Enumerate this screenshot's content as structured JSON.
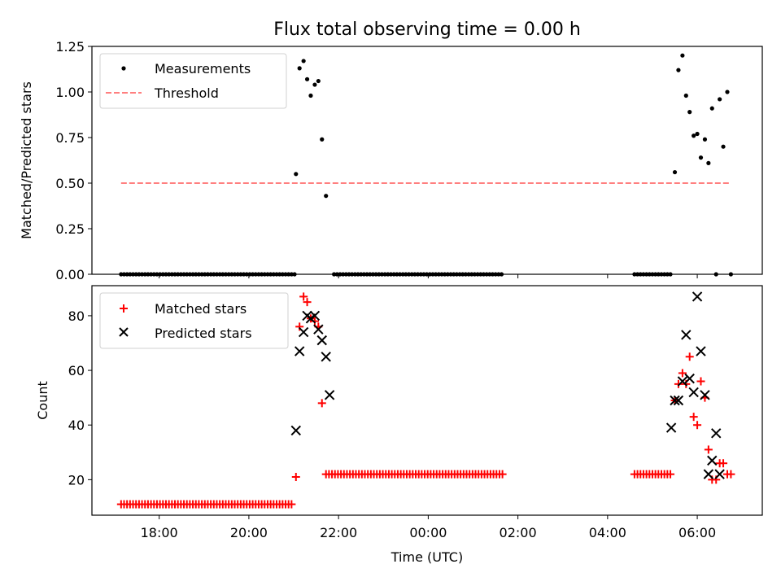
{
  "chart_data": [
    {
      "type": "scatter",
      "title": "Flux total observing time = 0.00 h",
      "xlabel": "",
      "ylabel": "Matched/Predicted stars",
      "x_unit": "hours since 00:00 UTC (day 1)",
      "xlim": [
        16.5,
        31.45
      ],
      "ylim": [
        0.0,
        1.25
      ],
      "yticks": [
        "0.00",
        "0.25",
        "0.50",
        "0.75",
        "1.00",
        "1.25"
      ],
      "xticks": [
        18,
        20,
        22,
        24,
        26,
        28,
        30
      ],
      "legend": {
        "location": "top-left",
        "entries": [
          "Measurements",
          "Threshold"
        ]
      },
      "series": [
        {
          "name": "Measurements",
          "marker": "point",
          "color": "#000000",
          "zero_ranges": [
            [
              17.15,
              21.05,
              0.0667
            ],
            [
              21.9,
              25.7,
              0.0667
            ],
            [
              28.6,
              29.45,
              0.0667
            ]
          ],
          "points": [
            [
              21.05,
              0.55
            ],
            [
              21.13,
              1.13
            ],
            [
              21.22,
              1.17
            ],
            [
              21.3,
              1.07
            ],
            [
              21.38,
              0.98
            ],
            [
              21.47,
              1.04
            ],
            [
              21.55,
              1.06
            ],
            [
              21.63,
              0.74
            ],
            [
              21.72,
              0.43
            ],
            [
              29.5,
              0.56
            ],
            [
              29.58,
              1.12
            ],
            [
              29.67,
              1.2
            ],
            [
              29.75,
              0.98
            ],
            [
              29.83,
              0.89
            ],
            [
              29.92,
              0.76
            ],
            [
              30.0,
              0.77
            ],
            [
              30.08,
              0.64
            ],
            [
              30.17,
              0.74
            ],
            [
              30.25,
              0.61
            ],
            [
              30.33,
              0.91
            ],
            [
              30.42,
              0.0
            ],
            [
              30.5,
              0.96
            ],
            [
              30.58,
              0.7
            ],
            [
              30.67,
              1.0
            ],
            [
              30.75,
              0.0
            ]
          ]
        },
        {
          "name": "Threshold",
          "style": "dashed",
          "color": "#ff7f7f",
          "x": [
            17.15,
            30.75
          ],
          "y": [
            0.5,
            0.5
          ]
        }
      ]
    },
    {
      "type": "scatter",
      "title": "",
      "xlabel": "Time (UTC)",
      "ylabel": "Count",
      "xlim": [
        16.5,
        31.45
      ],
      "ylim": [
        7.0,
        91.0
      ],
      "yticks": [
        20,
        40,
        60,
        80
      ],
      "xticks": [
        18,
        20,
        22,
        24,
        26,
        28,
        30
      ],
      "xtick_labels": [
        "18:00",
        "20:00",
        "22:00",
        "00:00",
        "02:00",
        "04:00",
        "06:00"
      ],
      "legend": {
        "location": "top-left",
        "entries": [
          "Matched stars",
          "Predicted stars"
        ]
      },
      "series": [
        {
          "name": "Matched stars",
          "marker": "plus",
          "color": "#ff0000",
          "constant_ranges": [
            [
              17.15,
              20.97,
              0.0667,
              11
            ],
            [
              21.72,
              25.7,
              0.0667,
              22
            ],
            [
              28.6,
              29.45,
              0.0667,
              22
            ]
          ],
          "points": [
            [
              21.05,
              21
            ],
            [
              21.13,
              76
            ],
            [
              21.22,
              87
            ],
            [
              21.3,
              85
            ],
            [
              21.38,
              79
            ],
            [
              21.47,
              78
            ],
            [
              21.55,
              76
            ],
            [
              21.63,
              48
            ],
            [
              29.5,
              49
            ],
            [
              29.58,
              55
            ],
            [
              29.67,
              59
            ],
            [
              29.75,
              55
            ],
            [
              29.83,
              65
            ],
            [
              29.92,
              43
            ],
            [
              30.0,
              40
            ],
            [
              30.08,
              56
            ],
            [
              30.17,
              50
            ],
            [
              30.25,
              31
            ],
            [
              30.33,
              20
            ],
            [
              30.42,
              20
            ],
            [
              30.5,
              26
            ],
            [
              30.58,
              26
            ],
            [
              30.67,
              22
            ],
            [
              30.75,
              22
            ]
          ]
        },
        {
          "name": "Predicted stars",
          "marker": "x",
          "color": "#000000",
          "points": [
            [
              21.05,
              38
            ],
            [
              21.13,
              67
            ],
            [
              21.22,
              74
            ],
            [
              21.3,
              80
            ],
            [
              21.38,
              79
            ],
            [
              21.47,
              80
            ],
            [
              21.55,
              75
            ],
            [
              21.63,
              71
            ],
            [
              21.72,
              65
            ],
            [
              21.8,
              51
            ],
            [
              29.42,
              39
            ],
            [
              29.5,
              49
            ],
            [
              29.58,
              49
            ],
            [
              29.67,
              56
            ],
            [
              29.75,
              73
            ],
            [
              29.83,
              57
            ],
            [
              29.92,
              52
            ],
            [
              30.0,
              87
            ],
            [
              30.08,
              67
            ],
            [
              30.17,
              51
            ],
            [
              30.25,
              22
            ],
            [
              30.33,
              27
            ],
            [
              30.42,
              37
            ],
            [
              30.5,
              22
            ]
          ]
        }
      ]
    }
  ]
}
